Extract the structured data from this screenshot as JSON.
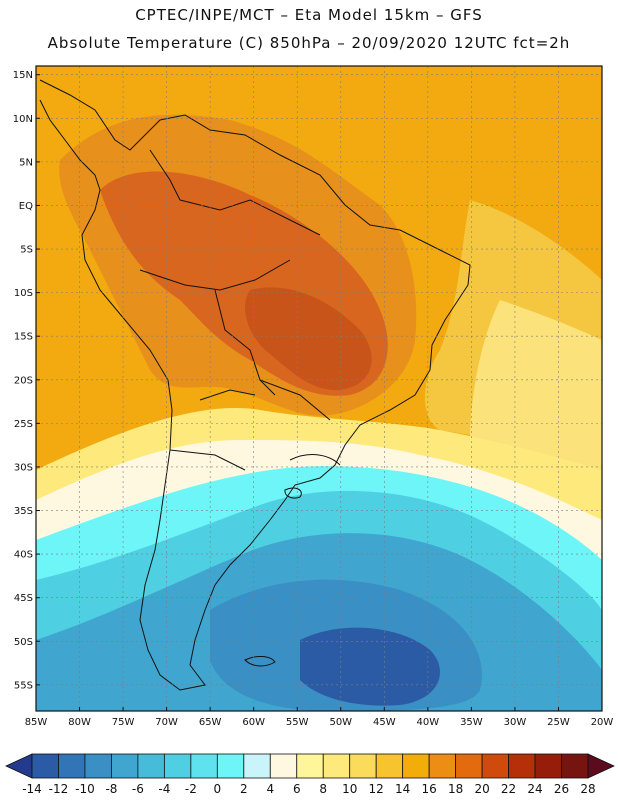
{
  "header": {
    "line1": "CPTEC/INPE/MCT –  Eta Model 15km – GFS",
    "line2": "Absolute Temperature (C) 850hPa – 20/09/2020 12UTC fct=2h"
  },
  "map": {
    "variable": "Absolute Temperature (C) 850hPa",
    "lon_range": [
      -85,
      -20
    ],
    "lat_range": [
      -58,
      16
    ],
    "grid": true,
    "lat_ticks": [
      {
        "value": 15,
        "label": "15N"
      },
      {
        "value": 10,
        "label": "10N"
      },
      {
        "value": 5,
        "label": "5N"
      },
      {
        "value": 0,
        "label": "EQ"
      },
      {
        "value": -5,
        "label": "5S"
      },
      {
        "value": -10,
        "label": "10S"
      },
      {
        "value": -15,
        "label": "15S"
      },
      {
        "value": -20,
        "label": "20S"
      },
      {
        "value": -25,
        "label": "25S"
      },
      {
        "value": -30,
        "label": "30S"
      },
      {
        "value": -35,
        "label": "35S"
      },
      {
        "value": -40,
        "label": "40S"
      },
      {
        "value": -45,
        "label": "45S"
      },
      {
        "value": -50,
        "label": "50S"
      },
      {
        "value": -55,
        "label": "55S"
      }
    ],
    "lon_ticks": [
      {
        "value": -85,
        "label": "85W"
      },
      {
        "value": -80,
        "label": "80W"
      },
      {
        "value": -75,
        "label": "75W"
      },
      {
        "value": -70,
        "label": "70W"
      },
      {
        "value": -65,
        "label": "65W"
      },
      {
        "value": -60,
        "label": "60W"
      },
      {
        "value": -55,
        "label": "55W"
      },
      {
        "value": -50,
        "label": "50W"
      },
      {
        "value": -45,
        "label": "45W"
      },
      {
        "value": -40,
        "label": "40W"
      },
      {
        "value": -35,
        "label": "35W"
      },
      {
        "value": -30,
        "label": "30W"
      },
      {
        "value": -25,
        "label": "25W"
      },
      {
        "value": -20,
        "label": "20W"
      }
    ]
  },
  "colorbar": {
    "levels": [
      "-14",
      "-12",
      "-10",
      "-8",
      "-6",
      "-4",
      "-2",
      "0",
      "2",
      "4",
      "6",
      "8",
      "10",
      "12",
      "14",
      "16",
      "18",
      "20",
      "22",
      "24",
      "26",
      "28"
    ],
    "colors": [
      "#243a8c",
      "#2c5ba6",
      "#3275b6",
      "#3a8fc4",
      "#40a6cf",
      "#46bcd8",
      "#4fd0e2",
      "#5ee3ee",
      "#6ef5f8",
      "#c9f4fa",
      "#fff8e1",
      "#fff59a",
      "#fde97c",
      "#fbdb5a",
      "#f7c430",
      "#f3ad0b",
      "#ec8e14",
      "#e46b0d",
      "#cf4a0c",
      "#b53008",
      "#951d0a",
      "#76150f",
      "#5c0a1e"
    ]
  }
}
